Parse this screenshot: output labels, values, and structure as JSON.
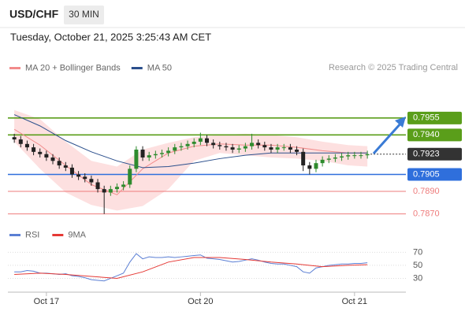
{
  "header": {
    "symbol": "USD/CHF",
    "interval": "30 MIN",
    "datetime": "Tuesday, October 21, 2025 3:25:43 AM CET"
  },
  "chart_data": [
    {
      "type": "candlestick",
      "credit": "Research © 2025 Trading Central",
      "up_color": "#2e8b2e",
      "down_color": "#222222",
      "xlim": [
        -1,
        61
      ],
      "ylim": [
        0.786,
        0.798
      ],
      "xticks": [
        {
          "value": 5,
          "label": "Oct 17"
        },
        {
          "value": 29,
          "label": "Oct 20"
        },
        {
          "value": 53,
          "label": "Oct 21"
        }
      ],
      "open": [
        0.7938,
        0.7936,
        0.7932,
        0.7929,
        0.7925,
        0.7923,
        0.792,
        0.7917,
        0.7913,
        0.7911,
        0.7905,
        0.7903,
        0.7901,
        0.7898,
        0.7892,
        0.7889,
        0.7892,
        0.7894,
        0.7896,
        0.791,
        0.7927,
        0.792,
        0.7922,
        0.7923,
        0.7924,
        0.7926,
        0.7929,
        0.793,
        0.7932,
        0.7934,
        0.7937,
        0.7933,
        0.7931,
        0.793,
        0.7929,
        0.7927,
        0.7928,
        0.793,
        0.7933,
        0.7931,
        0.7929,
        0.7927,
        0.7929,
        0.7929,
        0.7927,
        0.7925,
        0.7913,
        0.791,
        0.7915,
        0.7918,
        0.7919,
        0.792,
        0.7921,
        0.7922,
        0.7922,
        0.7922
      ],
      "high": [
        0.7941,
        0.7939,
        0.7935,
        0.7932,
        0.7928,
        0.7926,
        0.7923,
        0.792,
        0.7916,
        0.7914,
        0.7908,
        0.7906,
        0.7904,
        0.7901,
        0.7895,
        0.7895,
        0.7897,
        0.7899,
        0.7913,
        0.793,
        0.793,
        0.7925,
        0.7926,
        0.7927,
        0.7929,
        0.7932,
        0.7933,
        0.7935,
        0.7937,
        0.7942,
        0.794,
        0.7936,
        0.7934,
        0.7933,
        0.7932,
        0.7931,
        0.7933,
        0.7941,
        0.7936,
        0.7934,
        0.7932,
        0.7932,
        0.7932,
        0.7932,
        0.793,
        0.7928,
        0.7916,
        0.7918,
        0.7921,
        0.7922,
        0.7923,
        0.7924,
        0.7925,
        0.7925,
        0.7925,
        0.7926
      ],
      "low": [
        0.7933,
        0.7929,
        0.7926,
        0.7922,
        0.792,
        0.7917,
        0.7914,
        0.791,
        0.7908,
        0.7902,
        0.79,
        0.7898,
        0.7895,
        0.7889,
        0.787,
        0.7886,
        0.7889,
        0.7891,
        0.7893,
        0.7907,
        0.7917,
        0.7917,
        0.7919,
        0.792,
        0.7921,
        0.7923,
        0.7926,
        0.7927,
        0.7929,
        0.7931,
        0.793,
        0.7928,
        0.7927,
        0.7926,
        0.7924,
        0.7924,
        0.7925,
        0.7927,
        0.7928,
        0.7926,
        0.7924,
        0.7924,
        0.7926,
        0.7924,
        0.7922,
        0.7908,
        0.7905,
        0.7907,
        0.7912,
        0.7915,
        0.7916,
        0.7917,
        0.7918,
        0.7919,
        0.7919,
        0.7919
      ],
      "close": [
        0.7936,
        0.7932,
        0.7929,
        0.7925,
        0.7923,
        0.792,
        0.7917,
        0.7913,
        0.7911,
        0.7905,
        0.7903,
        0.7901,
        0.7898,
        0.7892,
        0.7889,
        0.7892,
        0.7894,
        0.7896,
        0.791,
        0.7927,
        0.792,
        0.7922,
        0.7923,
        0.7924,
        0.7926,
        0.7929,
        0.793,
        0.7932,
        0.7934,
        0.7937,
        0.7933,
        0.7931,
        0.793,
        0.7929,
        0.7927,
        0.7928,
        0.793,
        0.7933,
        0.7931,
        0.7929,
        0.7927,
        0.7929,
        0.7929,
        0.7927,
        0.7925,
        0.7913,
        0.791,
        0.7915,
        0.7918,
        0.7919,
        0.792,
        0.7921,
        0.7922,
        0.7922,
        0.7922,
        0.7923
      ],
      "overlay_x": [
        0,
        4,
        8,
        12,
        16,
        20,
        24,
        28,
        32,
        36,
        40,
        44,
        48,
        52,
        55
      ],
      "overlays": [
        {
          "name": "MA 20 + Bollinger Bands",
          "color": "#f28b8b",
          "band_color": "#fde0e0",
          "values": [
            0.7945,
            0.7931,
            0.7913,
            0.7896,
            0.7887,
            0.791,
            0.7924,
            0.793,
            0.7932,
            0.7931,
            0.7931,
            0.7929,
            0.7926,
            0.7924,
            0.7924
          ],
          "upper": [
            0.7962,
            0.7954,
            0.7934,
            0.7917,
            0.7912,
            0.7927,
            0.7933,
            0.7938,
            0.794,
            0.7941,
            0.794,
            0.7938,
            0.7934,
            0.7931,
            0.793
          ],
          "lower": [
            0.7934,
            0.791,
            0.7889,
            0.7878,
            0.7873,
            0.7877,
            0.7892,
            0.7917,
            0.7924,
            0.7922,
            0.792,
            0.7919,
            0.7917,
            0.7913,
            0.7912
          ]
        },
        {
          "name": "MA 50",
          "color": "#2b4f8c",
          "values": [
            0.7958,
            0.7948,
            0.7935,
            0.7925,
            0.7917,
            0.7911,
            0.7912,
            0.7915,
            0.7919,
            0.7922,
            0.7924,
            0.7924,
            0.7924,
            0.7924,
            0.7924
          ]
        }
      ],
      "levels": [
        {
          "value": 0.7955,
          "color": "#5a9e1a",
          "boxed": true,
          "line": "solid"
        },
        {
          "value": 0.794,
          "label": "0.7940",
          "color": "#5a9e1a",
          "boxed": true,
          "line": "solid"
        },
        {
          "value": 0.7923,
          "color": "#333333",
          "boxed": true,
          "line": "dotted"
        },
        {
          "value": 0.7905,
          "color": "#2f6fdc",
          "boxed": true,
          "line": "solid"
        },
        {
          "value": 0.789,
          "label": "0.7890",
          "color": "#ee7b7b",
          "boxed": false,
          "line": "solid"
        },
        {
          "value": 0.787,
          "label": "0.7870",
          "color": "#ee7b7b",
          "boxed": false,
          "line": "solid"
        }
      ]
    },
    {
      "type": "line",
      "xlim": [
        -1,
        61
      ],
      "ylim": [
        10,
        85
      ],
      "yticks": [
        70,
        50,
        30
      ],
      "grid": true,
      "series": [
        {
          "name": "RSI",
          "color": "#5b7fd4",
          "values": [
            40,
            40,
            42,
            41,
            38,
            38,
            37,
            36,
            37,
            34,
            33,
            31,
            28,
            27,
            26,
            30,
            34,
            38,
            55,
            68,
            60,
            63,
            62,
            62,
            63,
            62,
            63,
            64,
            65,
            66,
            61,
            60,
            59,
            57,
            55,
            56,
            58,
            60,
            58,
            55,
            53,
            52,
            52,
            50,
            48,
            40,
            38,
            46,
            48,
            50,
            51,
            52,
            52,
            53,
            53,
            54
          ]
        },
        {
          "name": "9MA",
          "color": "#e53935",
          "x": [
            0,
            4,
            8,
            12,
            16,
            20,
            24,
            28,
            32,
            36,
            40,
            44,
            48,
            52,
            55
          ],
          "values": [
            36,
            38,
            36,
            33,
            30,
            40,
            55,
            62,
            62,
            59,
            55,
            52,
            48,
            50,
            51
          ]
        }
      ]
    }
  ]
}
